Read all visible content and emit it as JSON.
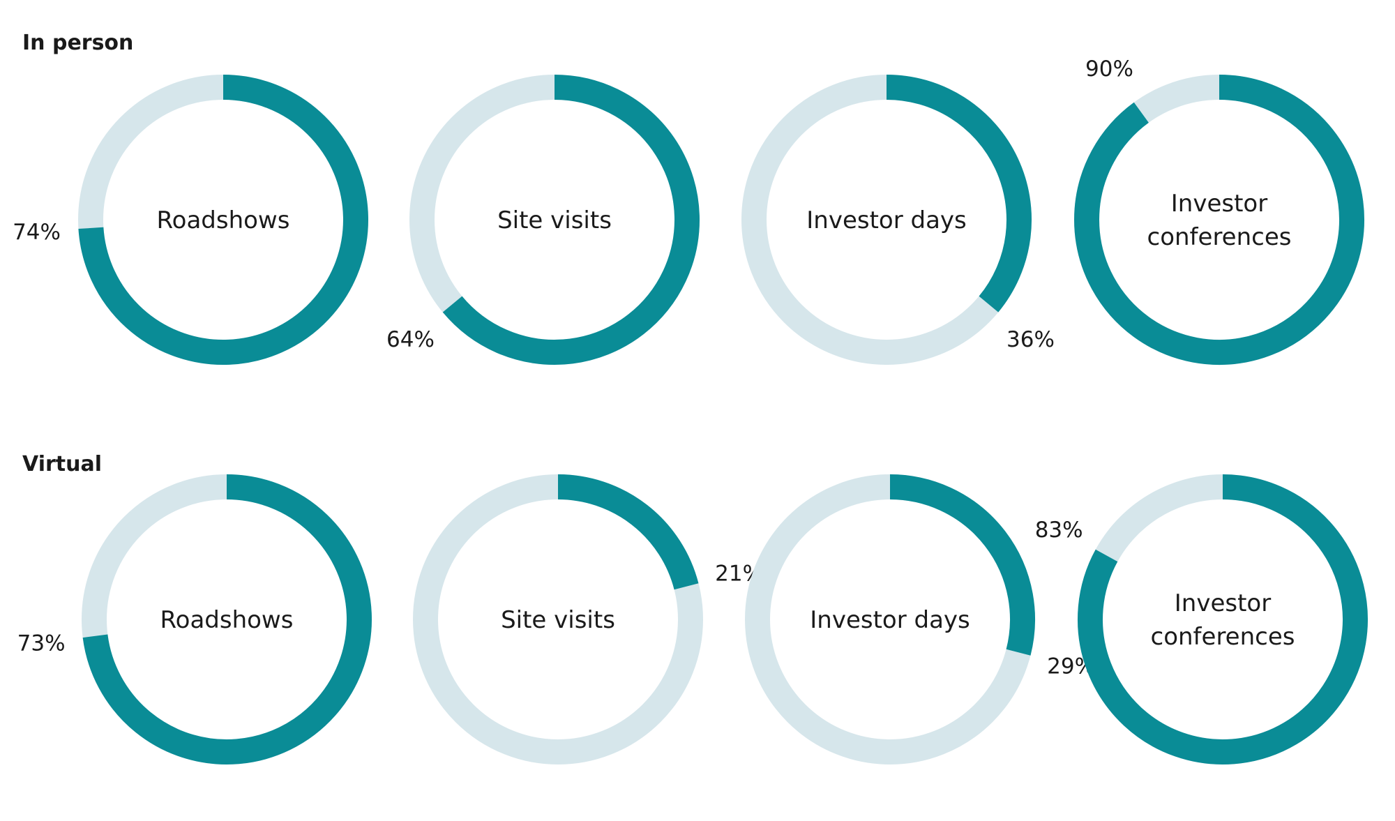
{
  "colors": {
    "filled": "#0a8c96",
    "track": "#d6e6eb",
    "text": "#1a1a1a"
  },
  "chart_data": [
    {
      "type": "pie",
      "subtype": "donut",
      "section": "In person",
      "series": [
        {
          "label": "Roadshows",
          "value": 74,
          "value_label": "74%"
        },
        {
          "label": "Site visits",
          "value": 64,
          "value_label": "64%"
        },
        {
          "label": "Investor days",
          "value": 36,
          "value_label": "36%"
        },
        {
          "label": "Investor conferences",
          "label_lines": [
            "Investor",
            "conferences"
          ],
          "value": 90,
          "value_label": "90%"
        }
      ]
    },
    {
      "type": "pie",
      "subtype": "donut",
      "section": "Virtual",
      "series": [
        {
          "label": "Roadshows",
          "value": 73,
          "value_label": "73%"
        },
        {
          "label": "Site visits",
          "value": 21,
          "value_label": "21%"
        },
        {
          "label": "Investor days",
          "value": 29,
          "value_label": "29%"
        },
        {
          "label": "Investor conferences",
          "label_lines": [
            "Investor",
            "conferences"
          ],
          "value": 83,
          "value_label": "83%"
        }
      ]
    }
  ]
}
